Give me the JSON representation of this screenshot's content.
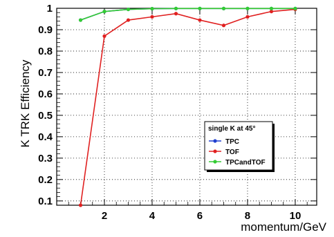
{
  "chart_data": {
    "type": "line",
    "title": "",
    "xlabel": "momentum/GeV",
    "ylabel": "K TRK Efficiency",
    "xlim": [
      0,
      10.9
    ],
    "ylim": [
      0.08,
      1.0
    ],
    "x": [
      1,
      2,
      3,
      4,
      5,
      6,
      7,
      8,
      9,
      10
    ],
    "x_ticks": [
      2,
      4,
      6,
      8,
      10
    ],
    "x_tick_labels": [
      "2",
      "4",
      "6",
      "8",
      "10"
    ],
    "y_ticks": [
      0.1,
      0.2,
      0.3,
      0.4,
      0.5,
      0.6,
      0.7,
      0.8,
      0.9,
      1.0
    ],
    "y_tick_labels": [
      "0.1",
      "0.2",
      "0.3",
      "0.4",
      "0.5",
      "0.6",
      "0.7",
      "0.8",
      "0.9",
      "1"
    ],
    "grid": true,
    "legend_position": "center-right",
    "legend_title": "single K at 45°",
    "series": [
      {
        "name": "TPC",
        "color": "#1f3fcf",
        "values": [
          0.945,
          0.985,
          0.995,
          0.998,
          0.999,
          0.999,
          0.999,
          0.999,
          0.999,
          0.999
        ]
      },
      {
        "name": "TOF",
        "color": "#e02020",
        "values": [
          0.08,
          0.87,
          0.945,
          0.96,
          0.975,
          0.945,
          0.92,
          0.96,
          0.985,
          0.995
        ]
      },
      {
        "name": "TPCandTOF",
        "color": "#33cc33",
        "values": [
          0.945,
          0.985,
          0.995,
          0.998,
          0.999,
          0.999,
          0.999,
          0.999,
          0.999,
          0.999
        ]
      }
    ]
  }
}
